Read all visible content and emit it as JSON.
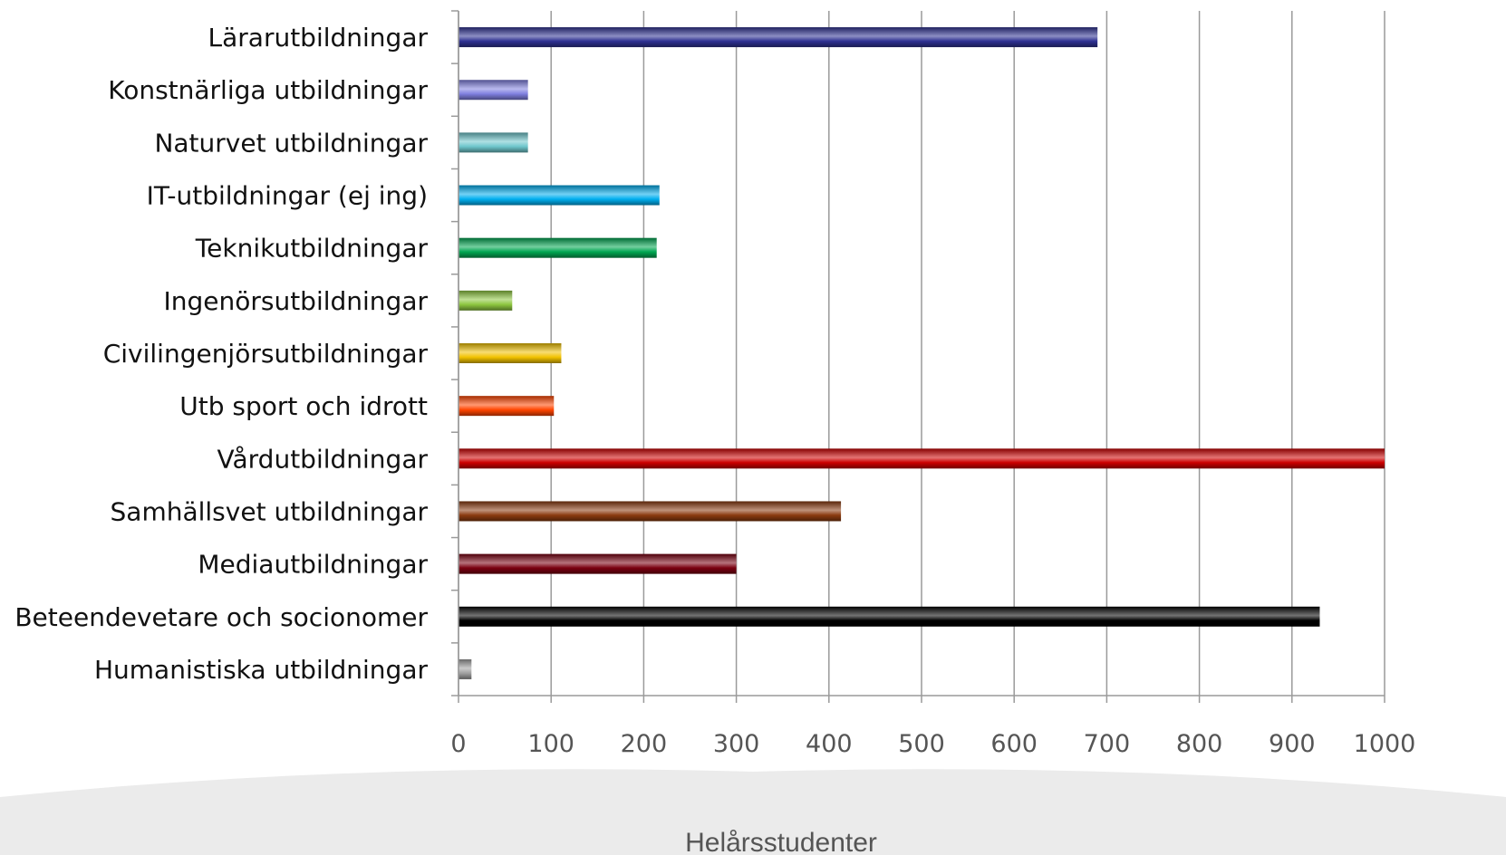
{
  "chart_data": {
    "type": "bar",
    "orientation": "horizontal",
    "title": "",
    "xlabel": "Helårsstudenter",
    "ylabel": "",
    "xlim": [
      0,
      1000
    ],
    "x_ticks": [
      0,
      100,
      200,
      300,
      400,
      500,
      600,
      700,
      800,
      900,
      1000
    ],
    "grid": "vertical",
    "categories": [
      "Lärarutbildningar",
      "Konstnärliga utbildningar",
      "Naturvet utbildningar",
      "IT-utbildningar (ej ing)",
      "Teknikutbildningar",
      "Ingenörsutbildningar",
      "Civilingenjörsutbildningar",
      "Utb sport och idrott",
      "Vårdutbildningar",
      "Samhällsvet utbildningar",
      "Mediautbildningar",
      "Beteendevetare och socionomer",
      "Humanistiska utbildningar"
    ],
    "values": [
      690,
      75,
      75,
      217,
      214,
      58,
      111,
      103,
      1000,
      413,
      300,
      930,
      14
    ],
    "colors": [
      "#2e3192",
      "#8080e0",
      "#6ec6cc",
      "#00aeef",
      "#00a651",
      "#8dc63f",
      "#f2c200",
      "#ff4500",
      "#cc0000",
      "#8b3a0f",
      "#7a0010",
      "#000000",
      "#a0a0a0"
    ]
  }
}
